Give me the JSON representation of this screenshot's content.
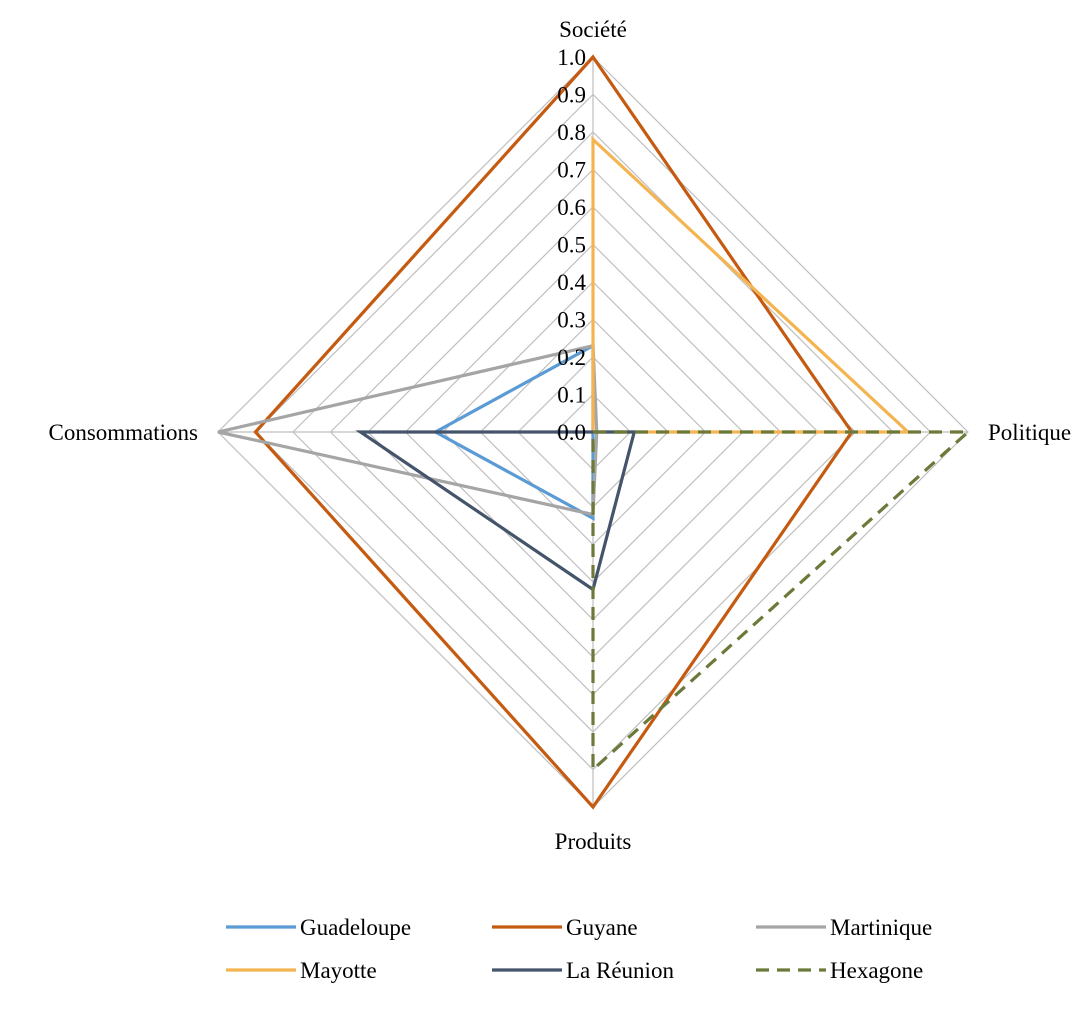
{
  "chart_data": {
    "type": "radar",
    "axes": [
      "Société",
      "Politique",
      "Produits",
      "Consommations"
    ],
    "rlim": [
      0,
      1.0
    ],
    "ticks": [
      "0.0",
      "0.1",
      "0.2",
      "0.3",
      "0.4",
      "0.5",
      "0.6",
      "0.7",
      "0.8",
      "0.9",
      "1.0"
    ],
    "grid": true,
    "legend_position": "bottom",
    "series": [
      {
        "name": "Guadeloupe",
        "values": [
          0.23,
          0.0,
          0.23,
          0.42
        ],
        "color": "#5B9BD5",
        "dash": "solid"
      },
      {
        "name": "Guyane",
        "values": [
          1.0,
          0.69,
          1.0,
          0.9
        ],
        "color": "#C55A11",
        "dash": "solid"
      },
      {
        "name": "Martinique",
        "values": [
          0.23,
          0.01,
          0.22,
          1.0
        ],
        "color": "#A5A5A5",
        "dash": "solid"
      },
      {
        "name": "Mayotte",
        "values": [
          0.78,
          0.84,
          0.0,
          0.0
        ],
        "color": "#F4B450",
        "dash": "solid"
      },
      {
        "name": "La Réunion",
        "values": [
          0.0,
          0.11,
          0.42,
          0.62
        ],
        "color": "#44546A",
        "dash": "solid"
      },
      {
        "name": "Hexagone",
        "values": [
          0.0,
          1.0,
          0.9,
          0.0
        ],
        "color": "#6B7A3A",
        "dash": "dashed"
      }
    ]
  }
}
